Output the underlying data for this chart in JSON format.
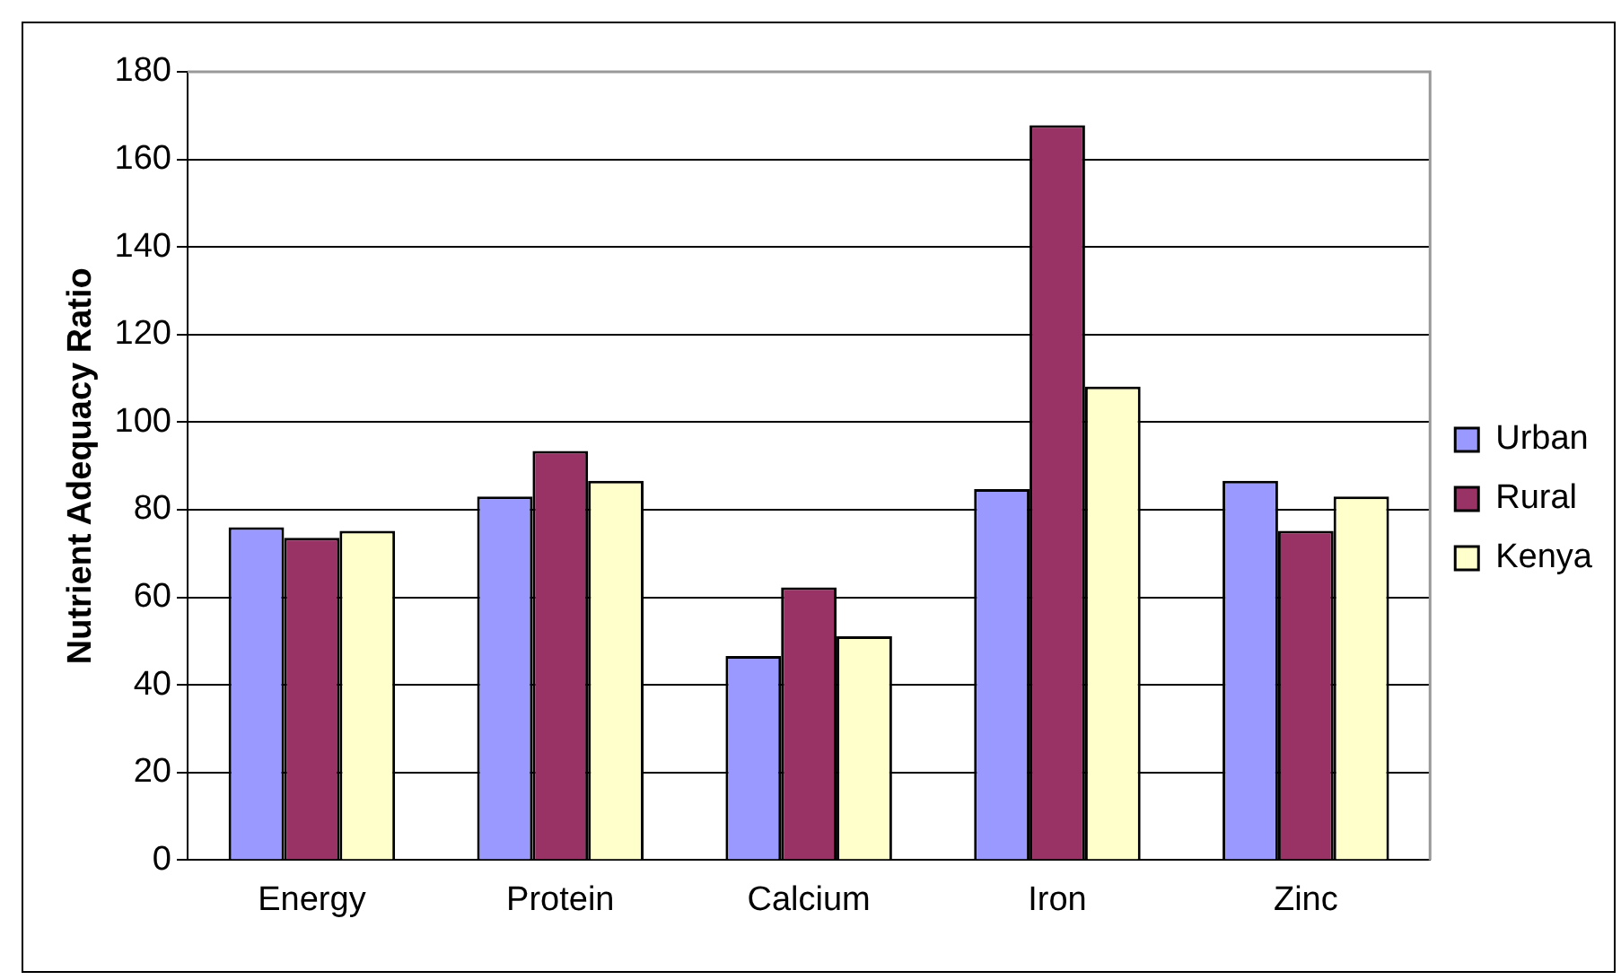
{
  "chart_data": {
    "type": "bar",
    "ylabel": "Nutrient Adequacy Ratio",
    "categories": [
      "Energy",
      "Protein",
      "Calcium",
      "Iron",
      "Zinc"
    ],
    "series": [
      {
        "name": "Urban",
        "color": "#9999ff",
        "values": [
          76,
          83,
          46.6,
          84.7,
          86.6
        ]
      },
      {
        "name": "Rural",
        "color": "#993366",
        "values": [
          73.6,
          93.4,
          62.3,
          167.8,
          75.2
        ]
      },
      {
        "name": "Kenya",
        "color": "#ffffcc",
        "values": [
          75.2,
          86.6,
          51.1,
          108.1,
          83
        ]
      }
    ],
    "ylim": [
      0,
      180
    ],
    "yticks": [
      0,
      20,
      40,
      60,
      80,
      100,
      120,
      140,
      160,
      180
    ],
    "grid": "y",
    "legend": "right"
  }
}
